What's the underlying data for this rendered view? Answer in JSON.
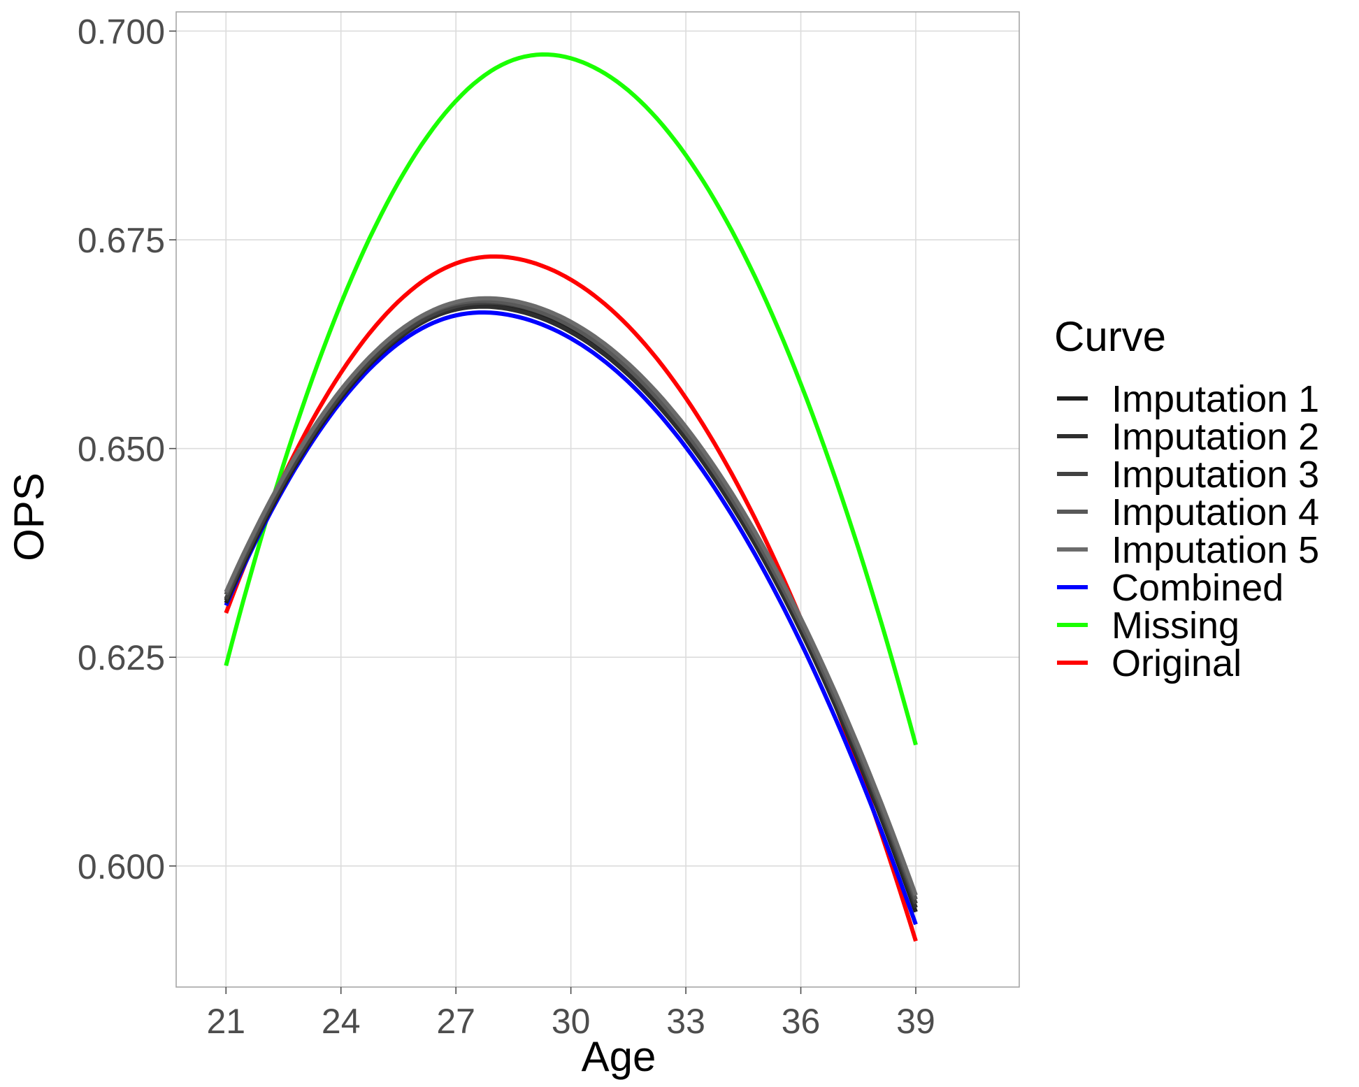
{
  "chart_data": {
    "type": "line",
    "xlabel": "Age",
    "ylabel": "OPS",
    "xlim": [
      19.7,
      41.7
    ],
    "ylim": [
      0.5855,
      0.7023
    ],
    "x_ticks": [
      21,
      24,
      27,
      30,
      33,
      36,
      39
    ],
    "y_ticks": [
      0.6,
      0.625,
      0.65,
      0.675,
      0.7
    ],
    "x_tick_labels": [
      "21",
      "24",
      "27",
      "30",
      "33",
      "36",
      "39"
    ],
    "y_tick_labels": [
      "0.600",
      "0.625",
      "0.650",
      "0.675",
      "0.700"
    ],
    "grid": true,
    "legend": {
      "title": "Curve",
      "position": "right"
    },
    "series": [
      {
        "name": "Imputation 1",
        "color": "#1f1f1f",
        "x": [
          21,
          27.8,
          39
        ],
        "y": [
          0.6315,
          0.6672,
          0.5945
        ]
      },
      {
        "name": "Imputation 2",
        "color": "#2e2e2e",
        "x": [
          21,
          27.7,
          39
        ],
        "y": [
          0.6318,
          0.667,
          0.595
        ]
      },
      {
        "name": "Imputation 3",
        "color": "#424242",
        "x": [
          21,
          27.8,
          39
        ],
        "y": [
          0.632,
          0.6675,
          0.5955
        ]
      },
      {
        "name": "Imputation 4",
        "color": "#585858",
        "x": [
          21,
          27.7,
          39
        ],
        "y": [
          0.6325,
          0.6677,
          0.596
        ]
      },
      {
        "name": "Imputation 5",
        "color": "#6b6b6b",
        "x": [
          21,
          27.8,
          39
        ],
        "y": [
          0.6328,
          0.668,
          0.5965
        ]
      },
      {
        "name": "Combined",
        "color": "#0000ff",
        "x": [
          21,
          27.7,
          39
        ],
        "y": [
          0.6312,
          0.6663,
          0.593
        ]
      },
      {
        "name": "Missing",
        "color": "#1aff00",
        "x": [
          21,
          29.3,
          39
        ],
        "y": [
          0.624,
          0.6972,
          0.6145
        ]
      },
      {
        "name": "Original",
        "color": "#ff0000",
        "x": [
          21,
          28.0,
          39
        ],
        "y": [
          0.6303,
          0.673,
          0.591
        ]
      }
    ]
  }
}
